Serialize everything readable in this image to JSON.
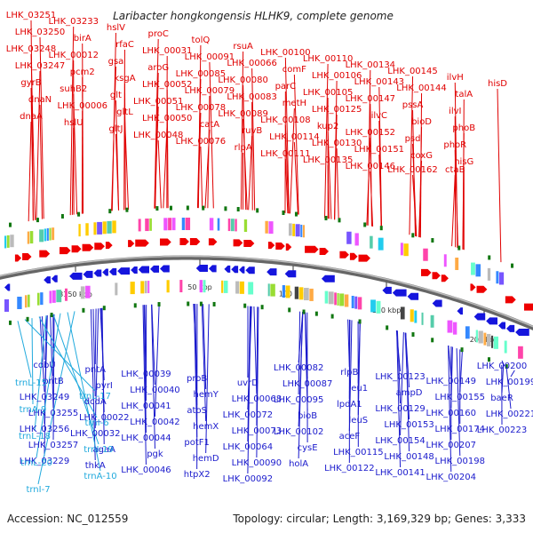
{
  "title": "Laribacter hongkongensis HLHK9, complete genome",
  "accession": "Accession: NC_012559",
  "topology": "Topology: circular; Length: 3,169,329 bp; Genes: 3,333",
  "colors": {
    "forward_label": "#e00000",
    "reverse_label": "#1a1acc",
    "rna_label": "#22aadd",
    "forward_arrow": "#ee0000",
    "reverse_arrow": "#1515dd",
    "backbone": "#888888",
    "tick_mark": "#117711"
  },
  "backbone": {
    "scale_ticks": [
      "3150 kbp",
      "50 kbp",
      "100 kbp",
      "150 kbp",
      "200 kbp"
    ]
  },
  "top_labels": [
    "LHK_03251",
    "LHK_03250",
    "LHK_03248",
    "LHK_03247",
    "gyrB",
    "dnaN",
    "dnaA",
    "LHK_03233",
    "birA",
    "LHK_00012",
    "pcm2",
    "suhB2",
    "LHK_00006",
    "hslU",
    "hslV",
    "rfaC",
    "gsa",
    "ksgA",
    "glt",
    "gltL",
    "gltJ",
    "proC",
    "LHK_00031",
    "aroG",
    "LHK_00052",
    "LHK_00051",
    "LHK_00050",
    "LHK_00048",
    "tolQ",
    "LHK_00091",
    "LHK_00085",
    "LHK_00079",
    "LHK_00078",
    "catA",
    "LHK_00076",
    "rsuA",
    "LHK_00066",
    "LHK_00080",
    "LHK_00083",
    "LHK_00089",
    "ruvB",
    "rlpA",
    "LHK_00100",
    "comF",
    "parC",
    "metH",
    "LHK_00108",
    "LHK_00114",
    "LHK_00111",
    "LHK_00110",
    "LHK_00106",
    "LHK_00105",
    "LHK_00125",
    "kup2",
    "LHK_00130",
    "LHK_00135",
    "LHK_00134",
    "LHK_00143",
    "LHK_00147",
    "ilvC",
    "LHK_00152",
    "LHK_00151",
    "LHK_00146",
    "LHK_00145",
    "LHK_00144",
    "pssA",
    "bioD",
    "psd",
    "coxG",
    "LHK_00162",
    "ilvH",
    "talA",
    "ilvI",
    "phoB",
    "phoR",
    "hisG",
    "ctaB",
    "hisD"
  ],
  "bottom_labels": [
    "cobU",
    "pntB",
    "LHK_03249",
    "LHK_03255",
    "LHK_03256",
    "LHK_03257",
    "LHK_03229",
    "pntA",
    "pyrI",
    "dcdA",
    "LHK_00022",
    "LHK_00032",
    "agaA",
    "thkA",
    "LHK_00039",
    "LHK_00040",
    "LHK_00041",
    "LHK_00042",
    "LHK_00044",
    "pgk",
    "LHK_00046",
    "proB",
    "hemY",
    "atoS",
    "hemX",
    "potF1",
    "hemD",
    "htpX2",
    "uvrD",
    "LHK_00068",
    "LHK_00072",
    "LHK_00073",
    "LHK_00064",
    "LHK_00090",
    "LHK_00092",
    "LHK_00082",
    "LHK_00087",
    "LHK_00095",
    "bioB",
    "LHK_00102",
    "cysE",
    "holA",
    "rlpB",
    "leu1",
    "lpdA1",
    "leuS",
    "aceF",
    "LHK_00115",
    "LHK_00122",
    "LHK_00123",
    "ampD",
    "LHK_00129",
    "LHK_00153",
    "LHK_00154",
    "LHK_00148",
    "LHK_00141",
    "LHK_00149",
    "LHK_00155",
    "LHK_00160",
    "LHK_00174",
    "LHK_00207",
    "LHK_00198",
    "LHK_00204",
    "LHK_00200",
    "LHK_00199",
    "baeR",
    "LHK_00221",
    "LHK_00223"
  ],
  "rna_labels": [
    "trnL-15",
    "trnL-17",
    "trnA-9",
    "trnI-6",
    "trnL-18",
    "trnI-19",
    "trnL-20",
    "trnA-10",
    "trnI-7"
  ]
}
